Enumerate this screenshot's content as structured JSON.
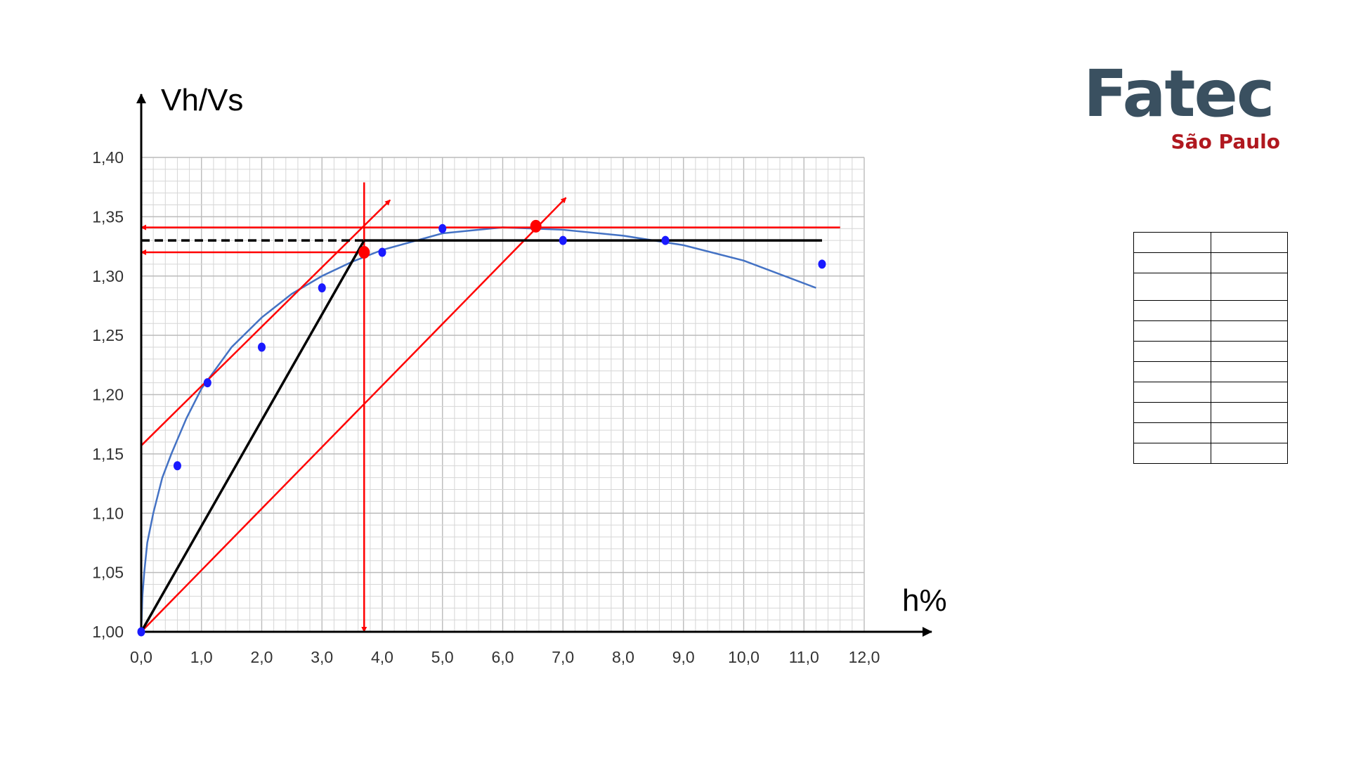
{
  "logo": {
    "main": "Fatec",
    "sub": "São Paulo"
  },
  "chart_data": {
    "type": "scatter",
    "xlabel": "h%",
    "ylabel": "Vh/Vs",
    "xlim": [
      0,
      12
    ],
    "ylim": [
      1.0,
      1.4
    ],
    "grid": true,
    "x_ticks": [
      "0,0",
      "1,0",
      "2,0",
      "3,0",
      "4,0",
      "5,0",
      "6,0",
      "7,0",
      "8,0",
      "9,0",
      "10,0",
      "11,0",
      "12,0"
    ],
    "y_ticks": [
      "1,00",
      "1,05",
      "1,10",
      "1,15",
      "1,20",
      "1,25",
      "1,30",
      "1,35",
      "1,40"
    ],
    "points": {
      "x": [
        0,
        0.6,
        1.1,
        2.0,
        3.0,
        4.0,
        5.0,
        7.0,
        8.7,
        11.3
      ],
      "y": [
        1.0,
        1.14,
        1.21,
        1.24,
        1.29,
        1.32,
        1.34,
        1.33,
        1.33,
        1.31
      ],
      "color": "#1a1aff"
    },
    "trend_curve": {
      "x": [
        0,
        0.02,
        0.05,
        0.1,
        0.2,
        0.35,
        0.5,
        0.75,
        1.0,
        1.5,
        2.0,
        2.5,
        3.0,
        3.5,
        4.0,
        5.0,
        6.0,
        7.0,
        8.0,
        9.0,
        10.0,
        11.2
      ],
      "y": [
        1.0,
        1.03,
        1.05,
        1.075,
        1.1,
        1.13,
        1.15,
        1.18,
        1.205,
        1.24,
        1.265,
        1.285,
        1.3,
        1.312,
        1.322,
        1.336,
        1.341,
        1.339,
        1.334,
        1.326,
        1.313,
        1.29
      ],
      "color": "#4472c4"
    },
    "highlight_points": {
      "x": [
        3.7,
        6.55
      ],
      "y": [
        1.32,
        1.342
      ],
      "color": "#ff0000"
    },
    "construction_lines": [
      {
        "color": "#ff0000",
        "from": [
          11.6,
          1.341
        ],
        "to": [
          0,
          1.341
        ],
        "arrow": true
      },
      {
        "color": "#ff0000",
        "from": [
          3.7,
          1.32
        ],
        "to": [
          0,
          1.32
        ],
        "arrow": true
      },
      {
        "color": "#ff0000",
        "from": [
          3.7,
          1.379
        ],
        "to": [
          3.7,
          1.0
        ],
        "arrow": true
      },
      {
        "color": "#ff0000",
        "from": [
          0,
          1.157
        ],
        "to": [
          4.13,
          1.364
        ],
        "arrow": true
      },
      {
        "color": "#ff0000",
        "from": [
          0,
          1.0
        ],
        "to": [
          7.05,
          1.366
        ],
        "arrow": true
      },
      {
        "color": "#000000",
        "from": [
          0,
          1.0
        ],
        "to": [
          3.7,
          1.33
        ],
        "arrow": false
      },
      {
        "color": "#000000",
        "from": [
          0,
          1.33
        ],
        "to": [
          3.7,
          1.33
        ],
        "arrow": false,
        "dashed": true
      },
      {
        "color": "#000000",
        "from": [
          3.7,
          1.33
        ],
        "to": [
          11.3,
          1.33
        ],
        "arrow": false
      }
    ]
  },
  "table": {
    "rows": 11,
    "cols": 2,
    "tall_row": 2
  }
}
